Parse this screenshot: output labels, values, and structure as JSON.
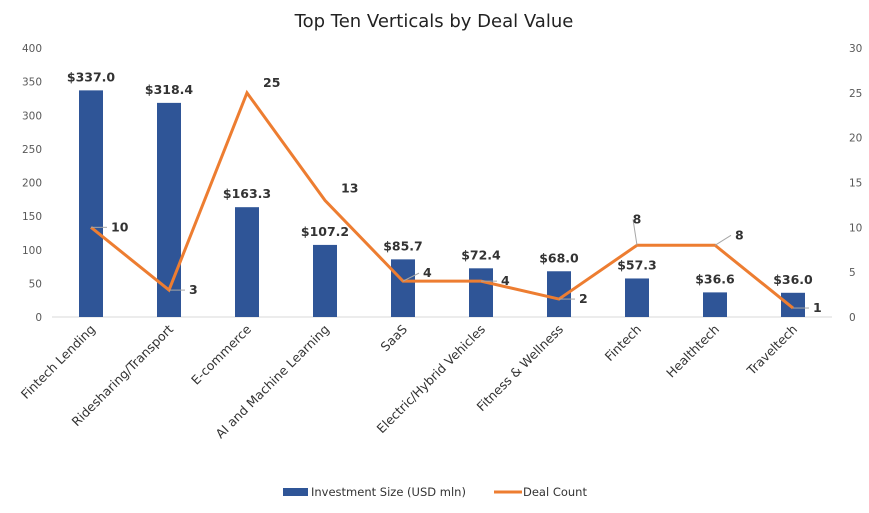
{
  "chart_data": {
    "type": "bar",
    "title": "Top Ten Verticals by Deal Value",
    "xlabel": "",
    "ylabel": "",
    "categories": [
      "Fintech Lending",
      "Ridesharing/Transport",
      "E-commerce",
      "AI and Machine Learning",
      "SaaS",
      "Electric/Hybrid Vehicles",
      "Fitness & Wellness",
      "Fintech",
      "Healthtech",
      "Traveltech"
    ],
    "series": [
      {
        "name": "Investment Size (USD mln)",
        "type": "bar",
        "axis": "left",
        "color": "#2F5597",
        "values": [
          337.0,
          318.4,
          163.3,
          107.2,
          85.7,
          72.4,
          68.0,
          57.3,
          36.6,
          36.0
        ],
        "labels": [
          "$337.0",
          "$318.4",
          "$163.3",
          "$107.2",
          "$85.7",
          "$72.4",
          "$68.0",
          "$57.3",
          "$36.6",
          "$36.0"
        ]
      },
      {
        "name": "Deal Count",
        "type": "line",
        "axis": "right",
        "color": "#ED7D31",
        "values": [
          10,
          3,
          25,
          13,
          4,
          4,
          2,
          8,
          8,
          1
        ],
        "labels": [
          "10",
          "3",
          "25",
          "13",
          "4",
          "4",
          "2",
          "8",
          "8",
          "1"
        ]
      }
    ],
    "ylim": [
      0,
      400
    ],
    "y_ticks": [
      "0",
      "50",
      "100",
      "150",
      "200",
      "250",
      "300",
      "350",
      "400"
    ],
    "y2lim": [
      0,
      30
    ],
    "y2_ticks": [
      "0",
      "5",
      "10",
      "15",
      "20",
      "25",
      "30"
    ],
    "grid": false,
    "legend": "bottom"
  }
}
